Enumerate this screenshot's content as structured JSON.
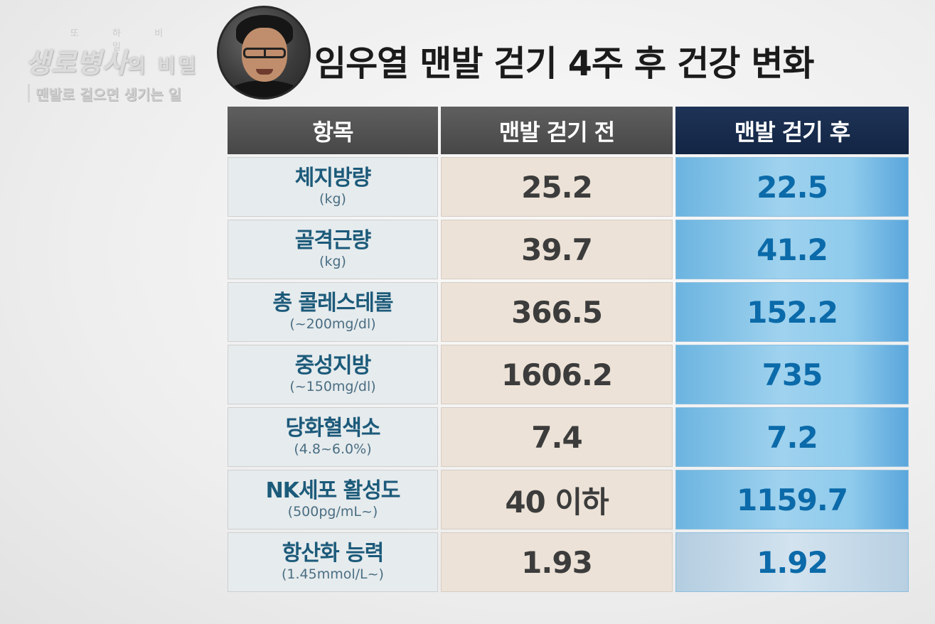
{
  "logo": {
    "small_text": "또 하 비 밀",
    "main_text": "생로병사",
    "main_text_small": "의 비밀",
    "subtitle": "맨발로 걸으면 생기는 일"
  },
  "title": "임우열 맨발 걷기 4주 후 건강 변화",
  "table": {
    "headers": [
      "항목",
      "맨발 걷기 전",
      "맨발 걷기 후"
    ],
    "rows": [
      {
        "name": "체지방량",
        "unit": "(kg)",
        "before": "25.2",
        "after": "22.5"
      },
      {
        "name": "골격근량",
        "unit": "(kg)",
        "before": "39.7",
        "after": "41.2"
      },
      {
        "name": "총 콜레스테롤",
        "unit": "(~200mg/dl)",
        "before": "366.5",
        "after": "152.2"
      },
      {
        "name": "중성지방",
        "unit": "(~150mg/dl)",
        "before": "1606.2",
        "after": "735"
      },
      {
        "name": "당화혈색소",
        "unit": "(4.8~6.0%)",
        "before": "7.4",
        "after": "7.2"
      },
      {
        "name": "NK세포 활성도",
        "unit": "(500pg/mL~)",
        "before": "40 이하",
        "after": "1159.7"
      },
      {
        "name": "항산화 능력",
        "unit": "(1.45mmol/L~)",
        "before": "1.93",
        "after": "1.92"
      }
    ]
  },
  "colors": {
    "header_gray": "#4f4f4f",
    "header_navy": "#182b4d",
    "item_text": "#1c5a7a",
    "after_text": "#0b6aa9"
  },
  "icons": {
    "avatar": "presenter-photo"
  }
}
